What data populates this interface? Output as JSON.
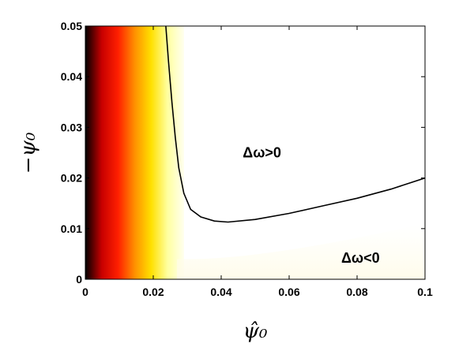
{
  "chart_data": {
    "type": "heatmap",
    "title": "",
    "xlabel": "ψ̂₀",
    "ylabel": "−ψ₀",
    "xlim": [
      0,
      0.1
    ],
    "ylim": [
      0,
      0.05
    ],
    "x_ticks": [
      "0",
      "0.02",
      "0.04",
      "0.06",
      "0.08",
      "0.1"
    ],
    "y_ticks": [
      "0",
      "0.01",
      "0.02",
      "0.03",
      "0.04",
      "0.05"
    ],
    "grid": false,
    "colormap": "hot",
    "colormap_colors": [
      "#000000",
      "#c80000",
      "#ff2000",
      "#ff9000",
      "#ffe000",
      "#ffffa0",
      "#fffff0"
    ],
    "contour": {
      "name": "Δω = 0",
      "color": "#000000",
      "x": [
        0.0237,
        0.0245,
        0.0255,
        0.0265,
        0.0275,
        0.029,
        0.031,
        0.034,
        0.038,
        0.042,
        0.05,
        0.06,
        0.07,
        0.08,
        0.09,
        0.1
      ],
      "y": [
        0.05,
        0.043,
        0.035,
        0.028,
        0.022,
        0.017,
        0.0138,
        0.0123,
        0.0115,
        0.0113,
        0.0118,
        0.013,
        0.0145,
        0.016,
        0.0178,
        0.02
      ]
    },
    "annotations": [
      {
        "text": "Δω>0",
        "x": 0.052,
        "y": 0.025
      },
      {
        "text": "Δω<0",
        "x": 0.081,
        "y": 0.0042
      }
    ]
  }
}
